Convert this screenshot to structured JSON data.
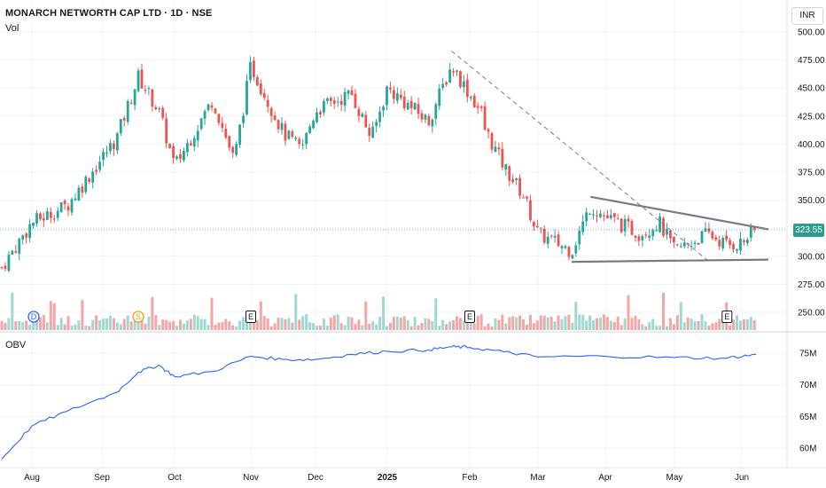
{
  "header": {
    "title": "MONARCH NETWORTH CAP LTD · 1D · NSE",
    "volume_label": "Vol",
    "obv_label": "OBV",
    "currency": "INR",
    "last_price": "323.55"
  },
  "colors": {
    "up": "#26a69a",
    "down": "#ef5350",
    "obv_line": "#2962ff",
    "trendline": "#787b86",
    "price_tag": "#2a9d8f"
  },
  "chart_data": [
    {
      "type": "candlestick",
      "title": "MONARCH NETWORTH CAP LTD · 1D · NSE",
      "ylim": [
        240,
        510
      ],
      "y_ticks": [
        250,
        275,
        300,
        325,
        350,
        375,
        400,
        425,
        450,
        475,
        500
      ],
      "y_tick_labels": [
        "250.00",
        "275.00",
        "300.00",
        "325.00",
        "350.00",
        "375.00",
        "400.00",
        "425.00",
        "450.00",
        "475.00",
        "500.00"
      ],
      "x_ticks": [
        "Aug",
        "Sep",
        "Oct",
        "Nov",
        "Dec",
        "2025",
        "Feb",
        "Mar",
        "Apr",
        "May",
        "Jun"
      ],
      "close_series_approx": [
        {
          "x": "Jul (start)",
          "y": 290
        },
        {
          "x": "Aug",
          "y": 330
        },
        {
          "x": "Aug (mid)",
          "y": 345
        },
        {
          "x": "Sep (early)",
          "y": 405
        },
        {
          "x": "Sep (mid)",
          "y": 460
        },
        {
          "x": "Sep (late)",
          "y": 430
        },
        {
          "x": "Oct",
          "y": 380
        },
        {
          "x": "Oct (mid)",
          "y": 440
        },
        {
          "x": "Oct (late)",
          "y": 385
        },
        {
          "x": "Nov",
          "y": 470
        },
        {
          "x": "Nov (mid)",
          "y": 410
        },
        {
          "x": "Nov (late)",
          "y": 395
        },
        {
          "x": "Dec",
          "y": 430
        },
        {
          "x": "Dec (mid)",
          "y": 445
        },
        {
          "x": "Dec (late)",
          "y": 405
        },
        {
          "x": "2025",
          "y": 450
        },
        {
          "x": "Jan (mid)",
          "y": 420
        },
        {
          "x": "Jan (late)",
          "y": 470
        },
        {
          "x": "Feb (early)",
          "y": 425
        },
        {
          "x": "Feb",
          "y": 440
        },
        {
          "x": "Feb (mid)",
          "y": 380
        },
        {
          "x": "Feb (late)",
          "y": 355
        },
        {
          "x": "Mar",
          "y": 320
        },
        {
          "x": "Mar (mid)",
          "y": 305
        },
        {
          "x": "Mar (late)",
          "y": 345
        },
        {
          "x": "Apr",
          "y": 335
        },
        {
          "x": "Apr (mid)",
          "y": 320
        },
        {
          "x": "Apr (late)",
          "y": 330
        },
        {
          "x": "May",
          "y": 305
        },
        {
          "x": "May (mid)",
          "y": 320
        },
        {
          "x": "May (late)",
          "y": 310
        },
        {
          "x": "Jun",
          "y": 312
        },
        {
          "x": "Jun (last)",
          "y": 323.55
        }
      ],
      "last_price": 323.55,
      "annotations": [
        {
          "type": "dashed-trendline",
          "from": {
            "x": "Jan (late)",
            "y": 483
          },
          "to": {
            "x": "May (mid)",
            "y": 296
          }
        },
        {
          "type": "resistance-line",
          "from": {
            "x": "Mar (late)",
            "y": 353
          },
          "to": {
            "x": "Jun (last)",
            "y": 324
          }
        },
        {
          "type": "support-line",
          "from": {
            "x": "Mar (mid)",
            "y": 295
          },
          "to": {
            "x": "Jun (last)",
            "y": 297
          }
        }
      ],
      "events": [
        {
          "label": "D",
          "position": "Aug"
        },
        {
          "label": "S",
          "position": "Sep (mid)"
        },
        {
          "label": "E",
          "position": "Nov"
        },
        {
          "label": "E",
          "position": "Feb"
        },
        {
          "label": "E",
          "position": "May (late)"
        }
      ]
    },
    {
      "type": "line",
      "title": "OBV",
      "ylim": [
        57,
        77
      ],
      "y_ticks": [
        60,
        65,
        70,
        75
      ],
      "y_tick_labels": [
        "60M",
        "65M",
        "70M",
        "75M"
      ],
      "series": [
        {
          "name": "OBV",
          "points": [
            {
              "x": "Jul (start)",
              "y": 58.3
            },
            {
              "x": "Aug",
              "y": 63.5
            },
            {
              "x": "Aug (mid)",
              "y": 65.8
            },
            {
              "x": "Sep (early)",
              "y": 68.8
            },
            {
              "x": "Sep (mid)",
              "y": 72.0
            },
            {
              "x": "Sep (late)",
              "y": 73.1
            },
            {
              "x": "Oct",
              "y": 71.3
            },
            {
              "x": "Oct (mid)",
              "y": 72.1
            },
            {
              "x": "Nov",
              "y": 74.5
            },
            {
              "x": "Nov (mid)",
              "y": 74.0
            },
            {
              "x": "Dec",
              "y": 74.0
            },
            {
              "x": "Dec (mid)",
              "y": 74.8
            },
            {
              "x": "2025",
              "y": 75.3
            },
            {
              "x": "Jan (mid)",
              "y": 75.5
            },
            {
              "x": "Jan (late)",
              "y": 76.0
            },
            {
              "x": "Feb",
              "y": 75.9
            },
            {
              "x": "Feb (mid)",
              "y": 75.2
            },
            {
              "x": "Mar",
              "y": 74.4
            },
            {
              "x": "Apr",
              "y": 74.5
            },
            {
              "x": "May",
              "y": 74.3
            },
            {
              "x": "May (late)",
              "y": 74.2
            },
            {
              "x": "Jun (last)",
              "y": 74.8
            }
          ]
        }
      ]
    }
  ]
}
